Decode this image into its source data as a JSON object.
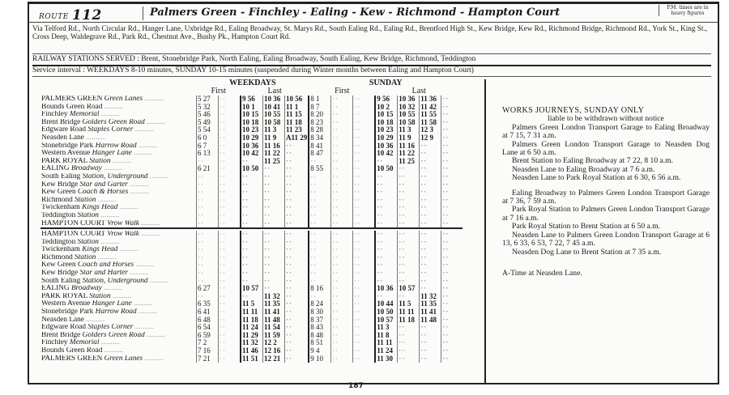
{
  "header": {
    "route_label": "ROUTE",
    "route_number": "112",
    "title": "Palmers Green - Finchley - Ealing - Kew - Richmond - Hampton Court",
    "note": "P.M. times are in heavy figures"
  },
  "via": "Via Telford Rd., North Circular Rd., Hanger Lane, Uxbridge Rd., Ealing Broadway, St. Marys Rd., South Ealing Rd., Ealing Rd., Brentford High St., Kew Bridge, Kew Rd., Richmond Bridge, Richmond Rd., York St., King St., Cross Deep, Waldegrave Rd., Park Rd., Chestnut Ave., Bushy Pk., Hampton Court Rd.",
  "railway_stations": "RAILWAY STATIONS SERVED : Brent, Stonebridge Park, North Ealing, Ealing Broadway, South Ealing, Kew Bridge, Richmond, Teddington",
  "service_interval": "Service interval : WEEKDAYS 8-10 minutes, SUNDAY 10-15 minutes (suspended during Winter months between Ealing and Hampton Court)",
  "timetable": {
    "weekdays_label": "WEEKDAYS",
    "sunday_label": "SUNDAY",
    "first_label": "First",
    "last_label": "Last",
    "blank": "··",
    "outbound": [
      {
        "name": "PALMERS GREEN",
        "place": "Green Lanes",
        "times": [
          "5 27",
          "",
          "9 56",
          "10 36",
          "10 56",
          "8 1",
          "",
          "",
          "9 56",
          "10 36",
          "11 36",
          ""
        ]
      },
      {
        "name": "Bounds Green Road",
        "place": "",
        "times": [
          "5 32",
          "",
          "10 1",
          "10 41",
          "11 1",
          "8 7",
          "",
          "",
          "10 2",
          "10 32",
          "11 42",
          ""
        ]
      },
      {
        "name": "Finchley",
        "place": "Memorial",
        "times": [
          "5 46",
          "",
          "10 15",
          "10 55",
          "11 15",
          "8 20",
          "",
          "",
          "10 15",
          "10 55",
          "11 55",
          ""
        ]
      },
      {
        "name": "Brent Bridge",
        "place": "Golders Green Road",
        "times": [
          "5 49",
          "",
          "10 18",
          "10 58",
          "11 18",
          "8 23",
          "",
          "",
          "10 18",
          "10 58",
          "11 58",
          ""
        ]
      },
      {
        "name": "Edgware Road",
        "place": "Staples Corner",
        "times": [
          "5 54",
          "",
          "10 23",
          "11 3",
          "11 23",
          "8 28",
          "",
          "",
          "10 23",
          "11 3",
          "12 3",
          ""
        ]
      },
      {
        "name": "Neasden Lane",
        "place": "",
        "times": [
          "6 0",
          "",
          "10 29",
          "11 9",
          "A11 29",
          "8 34",
          "",
          "",
          "10 29",
          "11 9",
          "12 9",
          ""
        ]
      },
      {
        "name": "Stonebridge Park",
        "place": "Harrow Road",
        "times": [
          "6 7",
          "",
          "10 36",
          "11 16",
          "",
          "8 41",
          "",
          "",
          "10 36",
          "11 16",
          "",
          ""
        ]
      },
      {
        "name": "Western Avenue",
        "place": "Hanger Lane",
        "times": [
          "6 13",
          "",
          "10 42",
          "11 22",
          "",
          "8 47",
          "",
          "",
          "10 42",
          "11 22",
          "",
          ""
        ]
      },
      {
        "name": "PARK ROYAL",
        "place": "Station",
        "indent": true,
        "times": [
          "",
          "",
          "",
          "11 25",
          "",
          "",
          "",
          "",
          "",
          "11 25",
          "",
          ""
        ]
      },
      {
        "name": "EALING",
        "place": "Broadway",
        "times": [
          "6 21",
          "",
          "10 50",
          "",
          "",
          "8 55",
          "",
          "",
          "10 50",
          "",
          "",
          ""
        ]
      },
      {
        "name": "South Ealing",
        "place": "Station, Underground",
        "times": [
          "",
          "",
          "",
          "",
          "",
          "",
          "",
          "",
          "",
          "",
          "",
          ""
        ]
      },
      {
        "name": "Kew Bridge",
        "place": "Star and Garter",
        "times": [
          "",
          "",
          "",
          "",
          "",
          "",
          "",
          "",
          "",
          "",
          "",
          ""
        ]
      },
      {
        "name": "Kew Green",
        "place": "Coach & Horses",
        "times": [
          "",
          "",
          "",
          "",
          "",
          "",
          "",
          "",
          "",
          "",
          "",
          ""
        ]
      },
      {
        "name": "Richmond",
        "place": "Station",
        "times": [
          "",
          "",
          "",
          "",
          "",
          "",
          "",
          "",
          "",
          "",
          "",
          ""
        ]
      },
      {
        "name": "Twickenham",
        "place": "Kings Head",
        "times": [
          "",
          "",
          "",
          "",
          "",
          "",
          "",
          "",
          "",
          "",
          "",
          ""
        ]
      },
      {
        "name": "Teddington",
        "place": "Station",
        "times": [
          "",
          "",
          "",
          "",
          "",
          "",
          "",
          "",
          "",
          "",
          "",
          ""
        ]
      },
      {
        "name": "HAMPTON COURT",
        "place": "Vrow Walk",
        "times": [
          "",
          "",
          "",
          "",
          "",
          "",
          "",
          "",
          "",
          "",
          "",
          ""
        ]
      }
    ],
    "inbound": [
      {
        "name": "HAMPTON COURT",
        "place": "Vrow Walk",
        "times": [
          "",
          "",
          "",
          "",
          "",
          "",
          "",
          "",
          "",
          "",
          "",
          ""
        ]
      },
      {
        "name": "Teddington",
        "place": "Station",
        "times": [
          "",
          "",
          "",
          "",
          "",
          "",
          "",
          "",
          "",
          "",
          "",
          ""
        ]
      },
      {
        "name": "Twickenham",
        "place": "Kings Head",
        "times": [
          "",
          "",
          "",
          "",
          "",
          "",
          "",
          "",
          "",
          "",
          "",
          ""
        ]
      },
      {
        "name": "Richmond",
        "place": "Station",
        "times": [
          "",
          "",
          "",
          "",
          "",
          "",
          "",
          "",
          "",
          "",
          "",
          ""
        ]
      },
      {
        "name": "Kew Green",
        "place": "Coach and Horses",
        "times": [
          "",
          "",
          "",
          "",
          "",
          "",
          "",
          "",
          "",
          "",
          "",
          ""
        ]
      },
      {
        "name": "Kew Bridge",
        "place": "Star and Harter",
        "times": [
          "",
          "",
          "",
          "",
          "",
          "",
          "",
          "",
          "",
          "",
          "",
          ""
        ]
      },
      {
        "name": "South Ealing",
        "place": "Station, Underground",
        "times": [
          "",
          "",
          "",
          "",
          "",
          "",
          "",
          "",
          "",
          "",
          "",
          ""
        ]
      },
      {
        "name": "EALING",
        "place": "Broadway",
        "times": [
          "6 27",
          "",
          "10 57",
          "",
          "",
          "8 16",
          "",
          "",
          "10 36",
          "10 57",
          "",
          ""
        ]
      },
      {
        "name": "PARK ROYAL",
        "place": "Station",
        "indent": true,
        "times": [
          "",
          "",
          "",
          "11 32",
          "",
          "",
          "",
          "",
          "",
          "",
          "11 32",
          ""
        ]
      },
      {
        "name": "Western Avenue",
        "place": "Hanger Lane",
        "times": [
          "6 35",
          "",
          "11 5",
          "11 35",
          "",
          "8 24",
          "",
          "",
          "10 44",
          "11 5",
          "11 35",
          ""
        ]
      },
      {
        "name": "Stonebridge Park",
        "place": "Harrow Road",
        "times": [
          "6 41",
          "",
          "11 11",
          "11 41",
          "",
          "8 30",
          "",
          "",
          "10 50",
          "11 11",
          "11 41",
          ""
        ]
      },
      {
        "name": "Neasden Lane",
        "place": "",
        "times": [
          "6 48",
          "",
          "11 18",
          "11 48",
          "",
          "8 37",
          "",
          "",
          "10 57",
          "11 18",
          "11 48",
          ""
        ]
      },
      {
        "name": "Edgware Road",
        "place": "Staples Corner",
        "times": [
          "6 54",
          "",
          "11 24",
          "11 54",
          "",
          "8 43",
          "",
          "",
          "11 3",
          "",
          "",
          ""
        ]
      },
      {
        "name": "Brent Bridge",
        "place": "Golders Green Road",
        "times": [
          "6 59",
          "",
          "11 29",
          "11 59",
          "",
          "8 48",
          "",
          "",
          "11 8",
          "",
          "",
          ""
        ]
      },
      {
        "name": "Finchley",
        "place": "Memorial",
        "times": [
          "7 2",
          "",
          "11 32",
          "12 2",
          "",
          "8 51",
          "",
          "",
          "11 11",
          "",
          "",
          ""
        ]
      },
      {
        "name": "Bounds Green Road",
        "place": "",
        "times": [
          "7 16",
          "",
          "11 46",
          "12 16",
          "",
          "9 4",
          "",
          "",
          "11 24",
          "",
          "",
          ""
        ]
      },
      {
        "name": "PALMERS GREEN",
        "place": "Green Lanes",
        "times": [
          "7 21",
          "",
          "11 51",
          "12 21",
          "",
          "9 10",
          "",
          "",
          "11 30",
          "",
          "",
          ""
        ]
      }
    ]
  },
  "works_journeys": {
    "title": "WORKS JOURNEYS, SUNDAY ONLY",
    "subtitle": "liable to be withdrawn without notice",
    "items": [
      "Palmers Green London Transport Garage to Ealing Broadway at 7 15, 7 31 a.m.",
      "Palmers Green London Transport Garage to Neasden Dog Lane at 6 50 a.m.",
      "Brent Station to Ealing Broadway at 7 22, 8 10 a.m.",
      "Neasden Lane to Ealing Broadway at 7 6 a.m.",
      "Neasden Lane to Park Royal Station at 6 30, 6 56 a.m.",
      "Ealing Broadway to Palmers Green London Transport Garage at 7 36, 7 59 a.m.",
      "Park Royal Station to Palmers Green London Transport Garage at 7 16 a.m.",
      "Park Royal Station to Brent Station at 6 50 a.m.",
      "Neasden Lane to Palmers Green London Transport Garage at 6 13, 6 33, 6 53, 7 22, 7 45 a.m.",
      "Neasden Dog Lane to Brent Station at 7 35 a.m."
    ],
    "footnote": "A-Time at Neasden Lane."
  },
  "page_number": "187"
}
